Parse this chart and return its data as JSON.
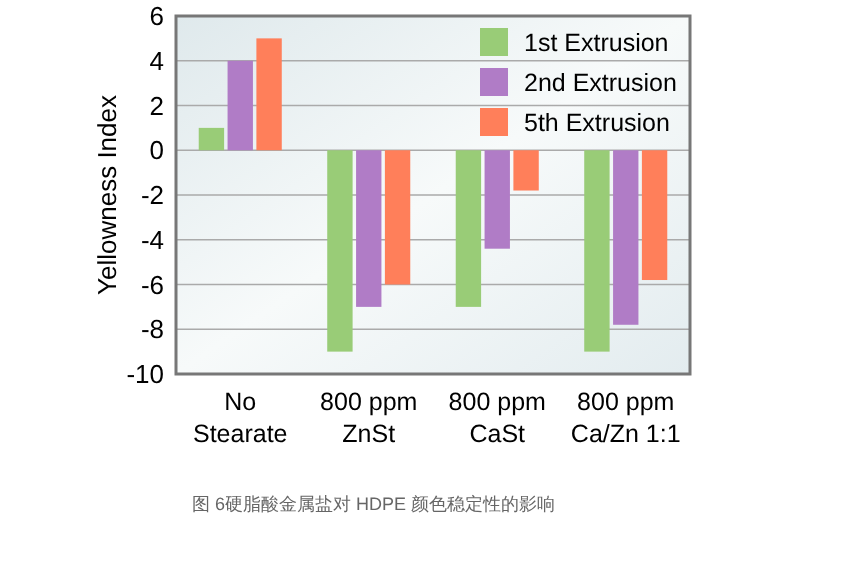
{
  "chart_data": {
    "type": "bar",
    "ylabel": "Yellowness Index",
    "categories": [
      "No\nStearate",
      "800 ppm\nZnSt",
      "800 ppm\nCaSt",
      "800 ppm\nCa/Zn 1:1"
    ],
    "series": [
      {
        "name": "1st Extrusion",
        "color": "#99cc77",
        "values": [
          1,
          -9,
          -7,
          -9
        ]
      },
      {
        "name": "2nd Extrusion",
        "color": "#b07cc6",
        "values": [
          4,
          -7,
          -4.4,
          -7.8
        ]
      },
      {
        "name": "5th Extrusion",
        "color": "#ff7f5a",
        "values": [
          5,
          -6,
          -1.8,
          -5.8
        ]
      }
    ],
    "ylim": [
      -10,
      6
    ],
    "yticks": [
      -10,
      -8,
      -6,
      -4,
      -2,
      0,
      2,
      4,
      6
    ],
    "grid": "y",
    "legend": "top right",
    "annotations": [
      "图 6硬脂酸金属盐对 HDPE 颜色稳定性的影响"
    ]
  }
}
